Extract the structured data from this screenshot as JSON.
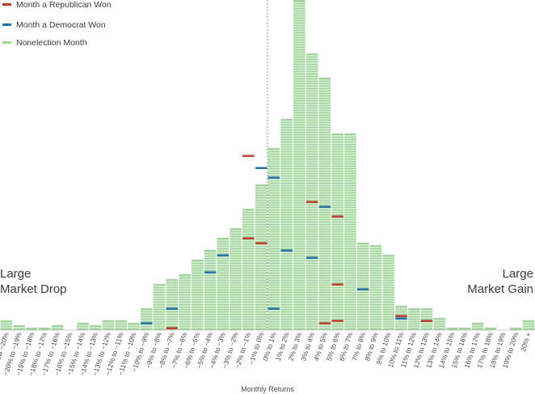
{
  "chart_data": {
    "type": "bar",
    "xlabel": "Monthly Returns",
    "categories": [
      "Below −20%",
      "−20% to −19%",
      "−19% to −18%",
      "−18% to −17%",
      "−17% to −16%",
      "−16% to −15%",
      "−15% to −14%",
      "−14% to −13%",
      "−13% to −12%",
      "−12% to −11%",
      "−11% to −10%",
      "−10% to −9%",
      "−9% to −8%",
      "−8% to −7%",
      "−7% to −6%",
      "−6% to −5%",
      "−5% to −4%",
      "−4% to −3%",
      "−3% to −2%",
      "−2% to −1%",
      "−1% to 0%",
      "0% to 1%",
      "1% to 2%",
      "2% to 3%",
      "3% to 4%",
      "4% to 5%",
      "5% to 6%",
      "6% to 7%",
      "7% to 8%",
      "8% to 9%",
      "9% to 10%",
      "10% to 11%",
      "11% to 12%",
      "12% to 13%",
      "13% to 14%",
      "14% to 15%",
      "15% to 16%",
      "16% to 17%",
      "17% to 18%",
      "18% to 19%",
      "19% to 20%",
      "20% +"
    ],
    "values": [
      4,
      2,
      1,
      1,
      2,
      0,
      3,
      2,
      4,
      4,
      3,
      9,
      19,
      21,
      23,
      29,
      33,
      38,
      42,
      50,
      60,
      75,
      87,
      136,
      114,
      104,
      81,
      81,
      36,
      35,
      31,
      10,
      9,
      9,
      5,
      1,
      1,
      3,
      1,
      0,
      1,
      4
    ],
    "series": [
      {
        "name": "Month a Republican Won",
        "color": "#c0392b",
        "marks": [
          {
            "category": "−8% to −7%",
            "count": 1
          },
          {
            "category": "−2% to −1%",
            "count": 38
          },
          {
            "category": "−2% to −1%",
            "count": 72
          },
          {
            "category": "−1% to 0%",
            "count": 36
          },
          {
            "category": "3% to 4%",
            "count": 53
          },
          {
            "category": "4% to 5%",
            "count": 3
          },
          {
            "category": "5% to 6%",
            "count": 4
          },
          {
            "category": "5% to 6%",
            "count": 19
          },
          {
            "category": "5% to 6%",
            "count": 47
          },
          {
            "category": "10% to 11%",
            "count": 6
          },
          {
            "category": "12% to 13%",
            "count": 4
          }
        ]
      },
      {
        "name": "Month a Democrat Won",
        "color": "#1f6fa8",
        "marks": [
          {
            "category": "−10% to −9%",
            "count": 3
          },
          {
            "category": "−8% to −7%",
            "count": 9
          },
          {
            "category": "−5% to −4%",
            "count": 24
          },
          {
            "category": "−4% to −3%",
            "count": 31
          },
          {
            "category": "−1% to 0%",
            "count": 67
          },
          {
            "category": "0% to 1%",
            "count": 9
          },
          {
            "category": "0% to 1%",
            "count": 63
          },
          {
            "category": "1% to 2%",
            "count": 33
          },
          {
            "category": "3% to 4%",
            "count": 30
          },
          {
            "category": "4% to 5%",
            "count": 51
          },
          {
            "category": "7% to 8%",
            "count": 17
          },
          {
            "category": "10% to 11%",
            "count": 5
          }
        ]
      },
      {
        "name": "Nonelection Month",
        "color": "#9fd39a"
      }
    ],
    "side_labels": {
      "left": [
        "Large",
        "Market Drop"
      ],
      "right": [
        "Large",
        "Market Gain"
      ]
    },
    "grid": false
  }
}
